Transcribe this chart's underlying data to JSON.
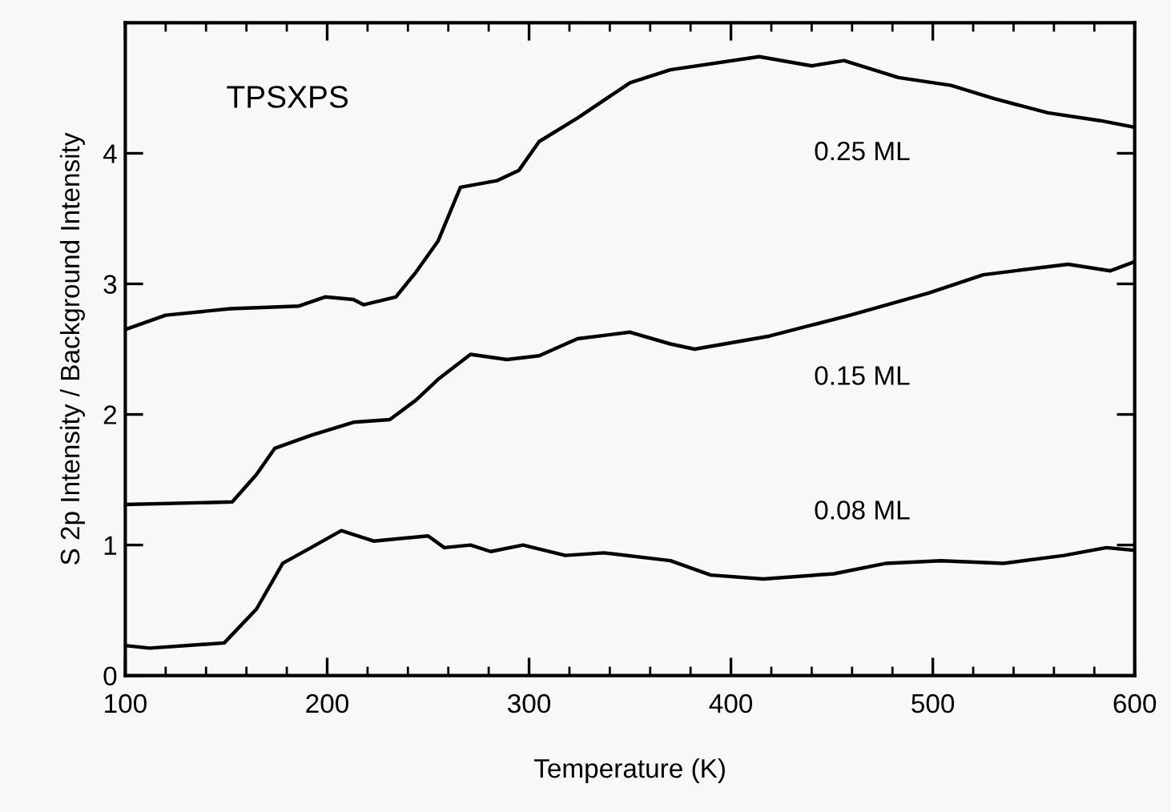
{
  "chart_data": {
    "type": "line",
    "xlabel": "Temperature (K)",
    "ylabel": "S 2p Intensity / Background Intensity",
    "xlim": [
      100,
      600
    ],
    "xticks": [
      100,
      200,
      300,
      400,
      500,
      600
    ],
    "ylim": [
      0,
      5
    ],
    "yticks": [
      0,
      1,
      2,
      3,
      4
    ],
    "grid": false,
    "legend": false,
    "marker": "none",
    "line_style": "solid",
    "annotations": [
      "TPSXPS"
    ],
    "series": [
      {
        "name": "0.25 ML",
        "color": "#000000",
        "x": [
          100,
          120,
          152,
          186,
          199,
          213,
          218,
          234,
          244,
          255,
          266,
          284,
          295,
          305,
          324,
          350,
          370,
          414,
          440,
          456,
          483,
          509,
          530,
          557,
          583,
          600
        ],
        "values": [
          2.65,
          2.76,
          2.81,
          2.83,
          2.9,
          2.88,
          2.84,
          2.9,
          3.09,
          3.33,
          3.74,
          3.79,
          3.87,
          4.09,
          4.27,
          4.54,
          4.64,
          4.74,
          4.67,
          4.71,
          4.58,
          4.52,
          4.42,
          4.31,
          4.25,
          4.2
        ]
      },
      {
        "name": "0.15 ML",
        "color": "#000000",
        "x": [
          100,
          153,
          165,
          174,
          192,
          213,
          231,
          244,
          255,
          271,
          289,
          305,
          324,
          350,
          370,
          382,
          419,
          459,
          498,
          525,
          567,
          588,
          600
        ],
        "values": [
          1.31,
          1.33,
          1.54,
          1.74,
          1.84,
          1.94,
          1.96,
          2.11,
          2.27,
          2.46,
          2.42,
          2.45,
          2.58,
          2.63,
          2.54,
          2.5,
          2.6,
          2.76,
          2.93,
          3.07,
          3.15,
          3.1,
          3.17
        ]
      },
      {
        "name": "0.08 ML",
        "color": "#000000",
        "x": [
          100,
          112,
          149,
          165,
          178,
          192,
          207,
          223,
          250,
          258,
          271,
          281,
          297,
          318,
          337,
          370,
          390,
          416,
          451,
          477,
          504,
          535,
          565,
          586,
          600
        ],
        "values": [
          0.23,
          0.21,
          0.25,
          0.51,
          0.86,
          0.98,
          1.11,
          1.03,
          1.07,
          0.98,
          1.0,
          0.95,
          1.0,
          0.92,
          0.94,
          0.88,
          0.77,
          0.74,
          0.78,
          0.86,
          0.88,
          0.86,
          0.92,
          0.98,
          0.96
        ]
      }
    ]
  }
}
